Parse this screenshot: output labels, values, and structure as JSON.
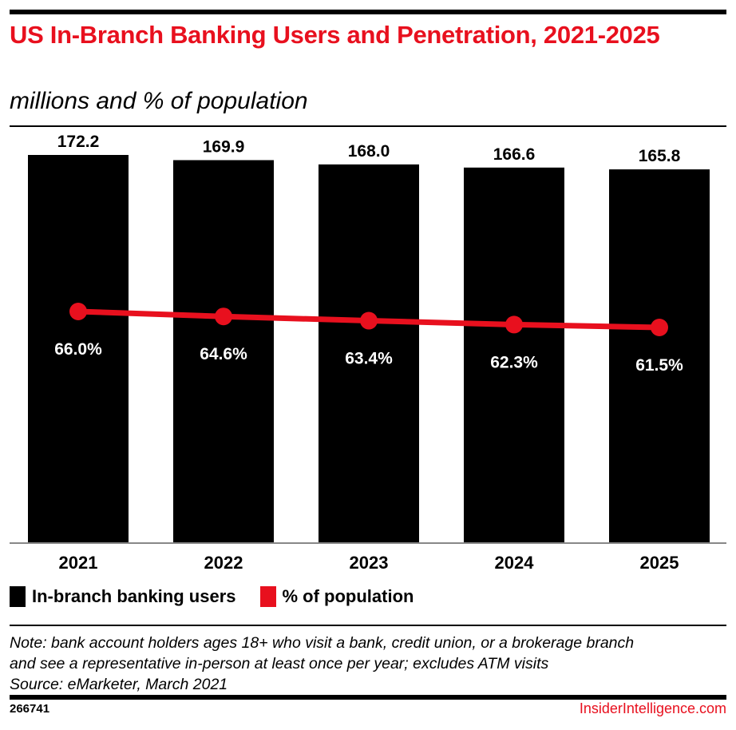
{
  "title": "US In-Branch Banking Users and Penetration, 2021-2025",
  "subtitle": "millions and % of population",
  "chart_data": {
    "type": "bar+line",
    "categories": [
      "2021",
      "2022",
      "2023",
      "2024",
      "2025"
    ],
    "series": [
      {
        "name": "In-branch banking users",
        "type": "bar",
        "color": "#000000",
        "values": [
          172.2,
          169.9,
          168.0,
          166.6,
          165.8
        ],
        "labels": [
          "172.2",
          "169.9",
          "168.0",
          "166.6",
          "165.8"
        ]
      },
      {
        "name": "% of population",
        "type": "line",
        "color": "#e8101e",
        "values": [
          66.0,
          64.6,
          63.4,
          62.3,
          61.5
        ],
        "labels": [
          "66.0%",
          "64.6%",
          "63.4%",
          "62.3%",
          "61.5%"
        ]
      }
    ],
    "ylim_bar": [
      0,
      172.2
    ],
    "legend_position": "bottom-left",
    "grid": false
  },
  "legend": [
    "In-branch banking users",
    "% of population"
  ],
  "note": [
    "Note: bank account holders ages 18+ who visit a bank, credit union, or a brokerage branch",
    "and see a representative in-person at least once per year; excludes ATM visits",
    "Source: eMarketer, March 2021"
  ],
  "footer": {
    "id": "266741",
    "brand": "InsiderIntelligence.com"
  }
}
